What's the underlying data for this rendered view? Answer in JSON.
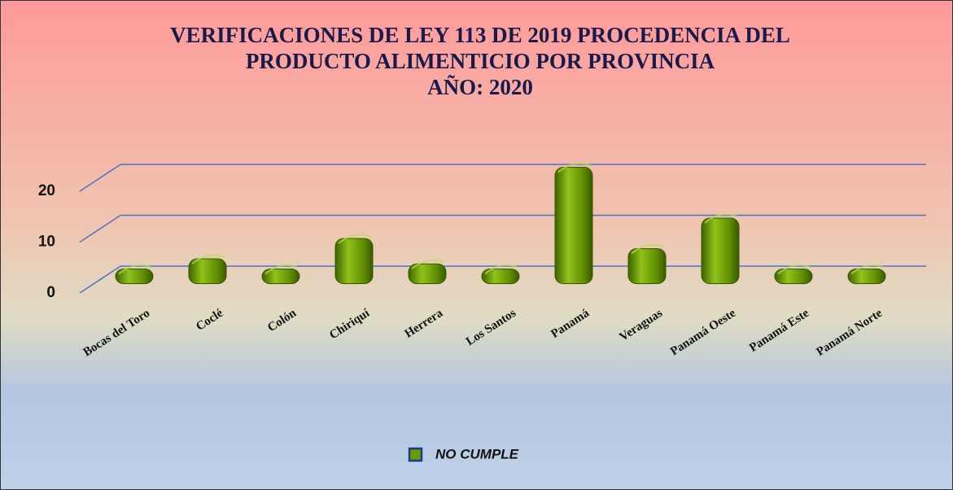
{
  "chart_data": {
    "type": "bar3d",
    "title": [
      "VERIFICACIONES DE LEY 113 DE 2019 PROCEDENCIA DEL",
      "PRODUCTO ALIMENTICIO POR PROVINCIA",
      "AÑO: 2020"
    ],
    "categories": [
      "Bocas del Toro",
      "Coclé",
      "Colón",
      "Chiriquí",
      "Herrera",
      "Los Santos",
      "Panamá",
      "Veraguas",
      "Panamá Oeste",
      "Panamá Este",
      "Panamá Norte"
    ],
    "series": [
      {
        "name": "NO CUMPLE",
        "color": "#6a9a00",
        "values": [
          0,
          2,
          0,
          6,
          1,
          0,
          20,
          4,
          10,
          0,
          0
        ]
      }
    ],
    "ylim": [
      0,
      20
    ],
    "yticks": [
      0,
      10,
      20
    ],
    "grid": true,
    "legend": "bottom"
  }
}
